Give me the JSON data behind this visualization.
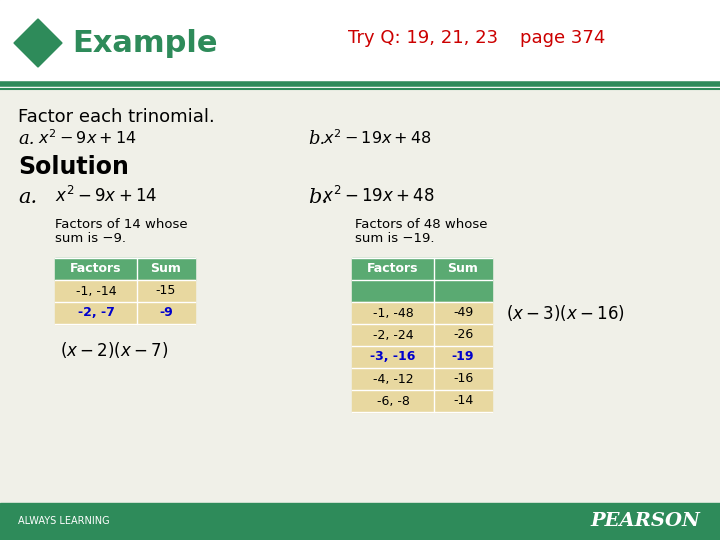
{
  "bg_color": "#f0f0e8",
  "footer_bg": "#2e8b5a",
  "green_line_color": "#2e8b5a",
  "diamond_color": "#2e8b5a",
  "example_color": "#2e8b5a",
  "tryq_color": "#cc0000",
  "title": "Example",
  "tryq_text": "Try Q: 19, 21, 23",
  "tryq_page": "page 374",
  "footer_left": "ALWAYS LEARNING",
  "footer_right": "PEARSON",
  "factor_text": "Factor each trinomial.",
  "solution_text": "Solution",
  "table_header_bg": "#5aaa72",
  "table_row_bg": "#e8d8a0",
  "table_header_text": "#ffffff",
  "table_text": "#000000",
  "table_highlight_text": "#0000cc",
  "table_a_headers": [
    "Factors",
    "Sum"
  ],
  "table_a_rows": [
    [
      "-1, -14",
      "-15",
      false
    ],
    [
      "-2, -7",
      "-9",
      true
    ]
  ],
  "table_b_headers": [
    "Factors",
    "Sum"
  ],
  "table_b_rows": [
    [
      "",
      "",
      false
    ],
    [
      "-1, -48",
      "-49",
      false
    ],
    [
      "-2, -24",
      "-26",
      false
    ],
    [
      "-3, -16",
      "-19",
      true
    ],
    [
      "-4, -12",
      "-16",
      false
    ],
    [
      "-6, -8",
      "-14",
      false
    ]
  ]
}
